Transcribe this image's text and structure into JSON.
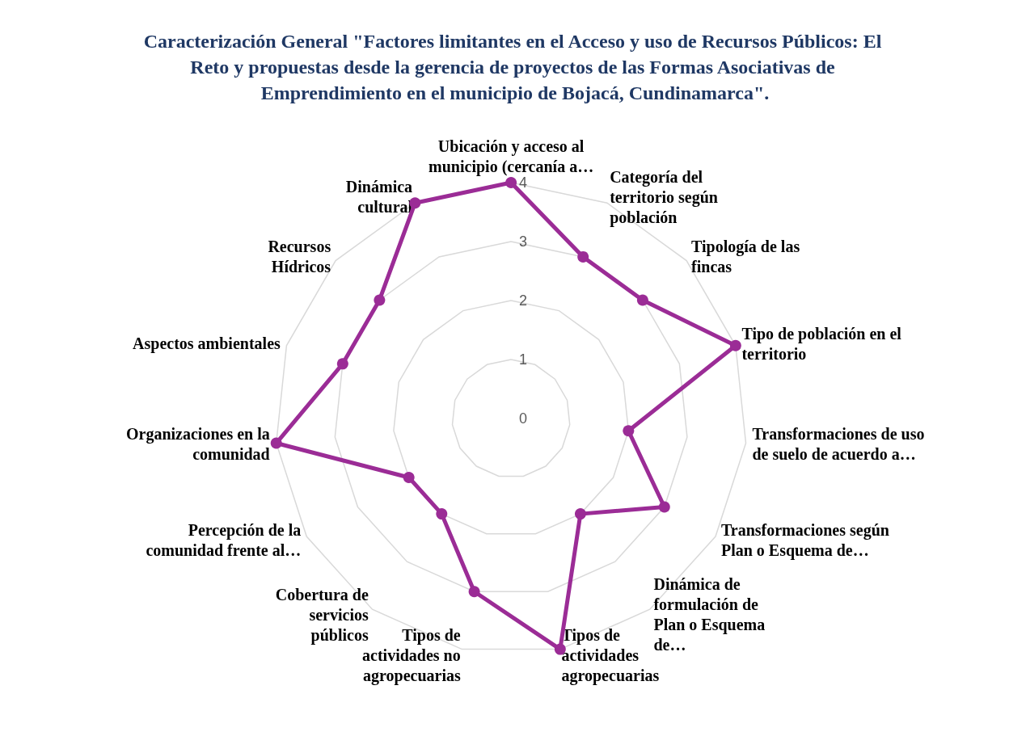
{
  "chart_data": {
    "type": "radar",
    "title": "Caracterización General \"Factores limitantes en el Acceso y uso de Recursos Públicos: El Reto y propuestas desde la gerencia de proyectos de las Formas Asociativas de Emprendimiento en el municipio de Bojacá, Cundinamarca\".",
    "categories": [
      "Ubicación y acceso al municipio (cercanía a…",
      "Categoría del territorio según población",
      "Tipología de las fincas",
      "Tipo de población en el territorio",
      "Transformaciones de uso de suelo de acuerdo a…",
      "Transformaciones según Plan o Esquema de…",
      "Dinámica de formulación de Plan o Esquema de…",
      "Tipos de actividades agropecuarias",
      "Tipos de actividades no agropecuarias",
      "Cobertura de servicios públicos",
      "Percepción de la comunidad frente al…",
      "Organizaciones en la comunidad",
      "Aspectos ambientales",
      "Recursos Hídricos",
      "Dinámica cultural"
    ],
    "series": [
      {
        "color": "#9b2c96",
        "values": [
          4,
          3,
          3,
          4,
          2,
          3,
          2,
          4,
          3,
          2,
          2,
          4,
          3,
          3,
          4
        ]
      }
    ],
    "ylim": [
      0,
      4
    ],
    "yticks": [
      0,
      1,
      2,
      3,
      4
    ],
    "grid": true,
    "marker": "circle"
  }
}
